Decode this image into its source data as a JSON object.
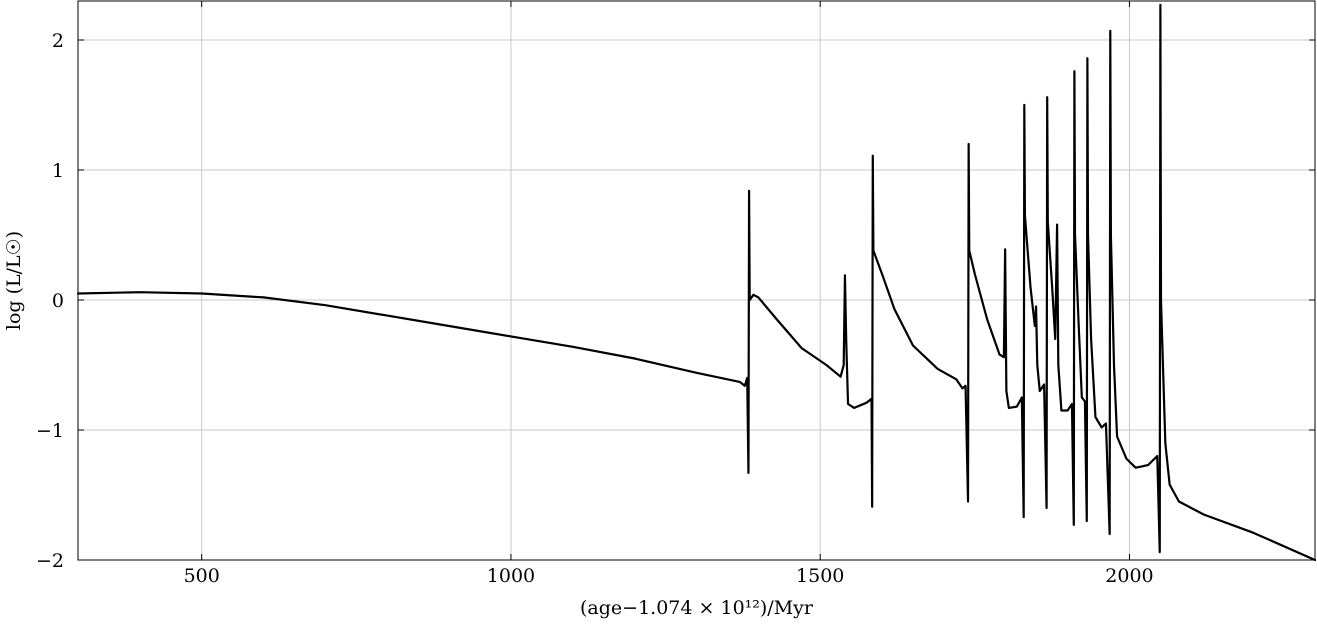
{
  "chart_data": {
    "type": "line",
    "xlabel": "(age−1.074 × 10¹²)/Myr",
    "ylabel": "log (L/L☉)",
    "xlim": [
      300,
      2300
    ],
    "ylim": [
      -2,
      2.3
    ],
    "grid": true,
    "x_ticks": [
      500,
      1000,
      1500,
      2000
    ],
    "x_tick_labels": [
      "500",
      "1000",
      "1500",
      "2000"
    ],
    "y_ticks": [
      -2,
      -1,
      0,
      1,
      2
    ],
    "y_tick_labels": [
      "−2",
      "−1",
      "0",
      "1",
      "2"
    ],
    "series": [
      {
        "color": "#000000",
        "points": [
          [
            300,
            0.05
          ],
          [
            400,
            0.06
          ],
          [
            500,
            0.05
          ],
          [
            600,
            0.02
          ],
          [
            700,
            -0.04
          ],
          [
            800,
            -0.12
          ],
          [
            900,
            -0.2
          ],
          [
            1000,
            -0.28
          ],
          [
            1100,
            -0.36
          ],
          [
            1200,
            -0.45
          ],
          [
            1300,
            -0.56
          ],
          [
            1370,
            -0.63
          ],
          [
            1378,
            -0.66
          ],
          [
            1382,
            -0.6
          ],
          [
            1384,
            -1.33
          ],
          [
            1385,
            0.84
          ],
          [
            1386,
            0.0
          ],
          [
            1392,
            0.04
          ],
          [
            1400,
            0.02
          ],
          [
            1430,
            -0.15
          ],
          [
            1470,
            -0.37
          ],
          [
            1510,
            -0.5
          ],
          [
            1533,
            -0.59
          ],
          [
            1538,
            -0.5
          ],
          [
            1540,
            0.19
          ],
          [
            1542,
            -0.3
          ],
          [
            1545,
            -0.8
          ],
          [
            1555,
            -0.83
          ],
          [
            1575,
            -0.79
          ],
          [
            1583,
            -0.76
          ],
          [
            1584,
            -1.59
          ],
          [
            1585,
            1.11
          ],
          [
            1586,
            0.38
          ],
          [
            1600,
            0.2
          ],
          [
            1620,
            -0.07
          ],
          [
            1650,
            -0.35
          ],
          [
            1690,
            -0.53
          ],
          [
            1720,
            -0.61
          ],
          [
            1730,
            -0.68
          ],
          [
            1735,
            -0.66
          ],
          [
            1739,
            -1.55
          ],
          [
            1740,
            1.2
          ],
          [
            1741,
            0.38
          ],
          [
            1750,
            0.2
          ],
          [
            1770,
            -0.15
          ],
          [
            1790,
            -0.42
          ],
          [
            1797,
            -0.44
          ],
          [
            1799,
            0.39
          ],
          [
            1801,
            -0.7
          ],
          [
            1805,
            -0.83
          ],
          [
            1818,
            -0.82
          ],
          [
            1826,
            -0.75
          ],
          [
            1829,
            -1.67
          ],
          [
            1830,
            1.5
          ],
          [
            1831,
            0.65
          ],
          [
            1840,
            0.1
          ],
          [
            1847,
            -0.2
          ],
          [
            1849,
            -0.05
          ],
          [
            1851,
            -0.5
          ],
          [
            1855,
            -0.7
          ],
          [
            1862,
            -0.65
          ],
          [
            1866,
            -1.6
          ],
          [
            1867,
            1.56
          ],
          [
            1868,
            0.6
          ],
          [
            1875,
            0.1
          ],
          [
            1880,
            -0.3
          ],
          [
            1883,
            0.58
          ],
          [
            1885,
            -0.5
          ],
          [
            1890,
            -0.85
          ],
          [
            1900,
            -0.85
          ],
          [
            1907,
            -0.8
          ],
          [
            1910,
            -1.73
          ],
          [
            1911,
            1.76
          ],
          [
            1912,
            0.5
          ],
          [
            1918,
            -0.2
          ],
          [
            1923,
            -0.75
          ],
          [
            1928,
            -0.78
          ],
          [
            1931,
            -1.7
          ],
          [
            1932,
            1.86
          ],
          [
            1933,
            0.5
          ],
          [
            1938,
            -0.3
          ],
          [
            1945,
            -0.9
          ],
          [
            1955,
            -0.98
          ],
          [
            1962,
            -0.95
          ],
          [
            1968,
            -1.8
          ],
          [
            1969,
            2.07
          ],
          [
            1970,
            0.5
          ],
          [
            1975,
            -0.5
          ],
          [
            1980,
            -1.05
          ],
          [
            1995,
            -1.22
          ],
          [
            2010,
            -1.29
          ],
          [
            2030,
            -1.27
          ],
          [
            2045,
            -1.2
          ],
          [
            2049,
            -1.94
          ],
          [
            2050,
            2.27
          ],
          [
            2051,
            0.0
          ],
          [
            2058,
            -1.1
          ],
          [
            2065,
            -1.42
          ],
          [
            2080,
            -1.55
          ],
          [
            2120,
            -1.65
          ],
          [
            2200,
            -1.79
          ],
          [
            2300,
            -2.0
          ]
        ]
      }
    ]
  }
}
